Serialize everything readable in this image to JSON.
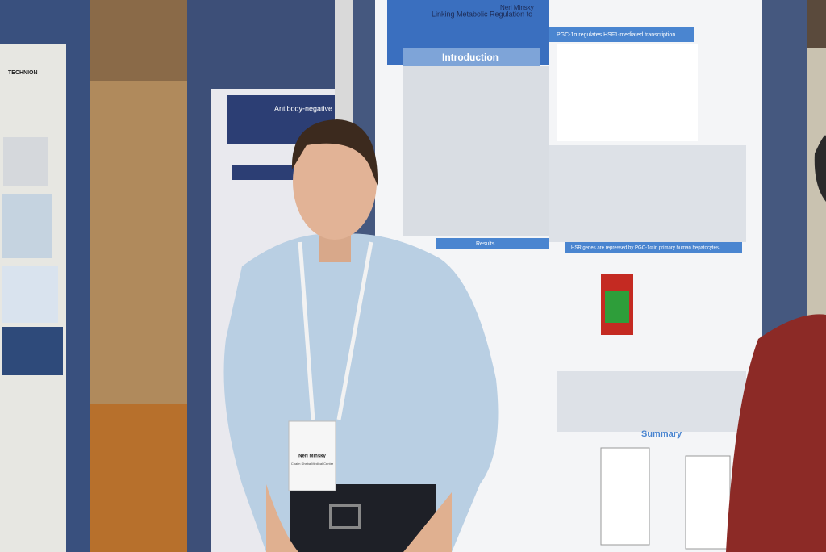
{
  "left_poster": {
    "logo": "TECHNION"
  },
  "middle_poster": {
    "title": "Antibody-negative insulin-dep"
  },
  "right_poster": {
    "title": "Linking Metabolic Regulation to",
    "author": "Neri Minsky",
    "sections": [
      "Introduction",
      "PGC-1α regulates HSF1-mediated transcription",
      "Results",
      "HSR genes are repressed by PGC-1α in primary human hepatocytes.",
      "Summary"
    ]
  },
  "badge": {
    "name": "Neri Minsky",
    "affiliation": "Chaim Sheba Medical Center"
  }
}
